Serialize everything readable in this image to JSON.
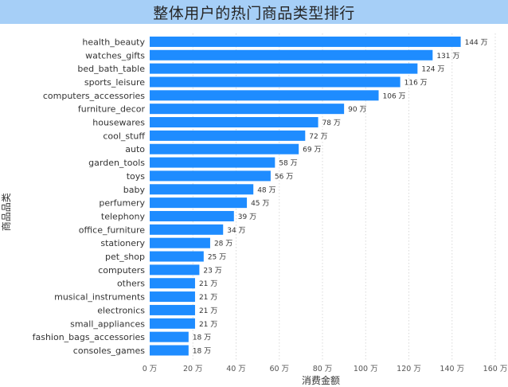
{
  "title": "整体用户的热门商品类型排行",
  "colors": {
    "bar": "#1e8cff",
    "title_bg": "#a6cff7"
  },
  "chart_data": {
    "type": "bar",
    "orientation": "horizontal",
    "title": "整体用户的热门商品类型排行",
    "xlabel": "消费金额",
    "ylabel": "商品品类",
    "unit": "万",
    "xlim": [
      0,
      160
    ],
    "x_ticks": [
      0,
      20,
      40,
      60,
      80,
      100,
      120,
      140,
      160
    ],
    "x_tick_labels": [
      "0 万",
      "20 万",
      "40 万",
      "60 万",
      "80 万",
      "100 万",
      "120 万",
      "140 万",
      "160 万"
    ],
    "grid": "vertical dotted",
    "categories": [
      "health_beauty",
      "watches_gifts",
      "bed_bath_table",
      "sports_leisure",
      "computers_accessories",
      "furniture_decor",
      "housewares",
      "cool_stuff",
      "auto",
      "garden_tools",
      "toys",
      "baby",
      "perfumery",
      "telephony",
      "office_furniture",
      "stationery",
      "pet_shop",
      "computers",
      "others",
      "musical_instruments",
      "electronics",
      "small_appliances",
      "fashion_bags_accessories",
      "consoles_games"
    ],
    "values": [
      144,
      131,
      124,
      116,
      106,
      90,
      78,
      72,
      69,
      58,
      56,
      48,
      45,
      39,
      34,
      28,
      25,
      23,
      21,
      21,
      21,
      21,
      18,
      18
    ],
    "data_labels": [
      "144 万",
      "131 万",
      "124 万",
      "116 万",
      "106 万",
      "90 万",
      "78 万",
      "72 万",
      "69 万",
      "58 万",
      "56 万",
      "48 万",
      "45 万",
      "39 万",
      "34 万",
      "28 万",
      "25 万",
      "23 万",
      "21 万",
      "21 万",
      "21 万",
      "21 万",
      "18 万",
      "18 万"
    ]
  }
}
